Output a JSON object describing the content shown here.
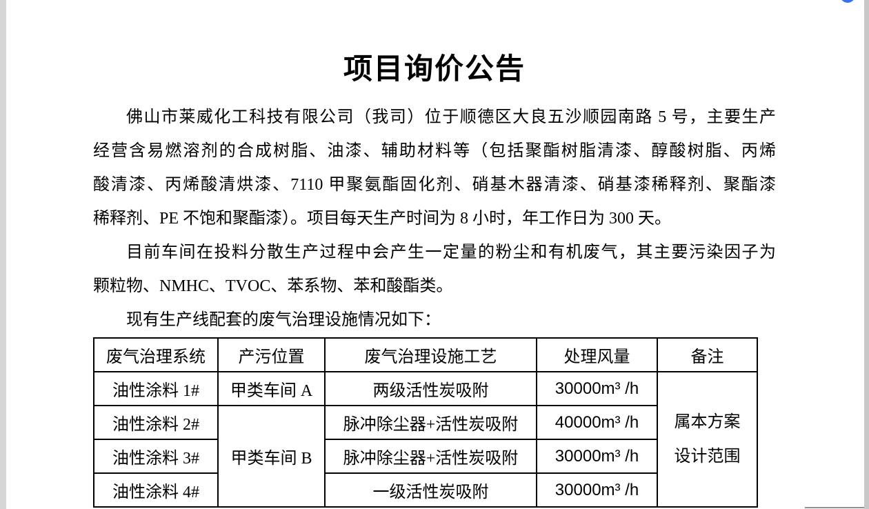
{
  "document": {
    "title": "项目询价公告",
    "paragraphs": [
      {
        "lines": [
          "佛山市莱威化工科技有限公司（我司）位于顺德区大良五沙顺园南路 5 号，主要生产",
          "经营含易燃溶剂的合成树脂、油漆、辅助材料等（包括聚酯树脂清漆、醇酸树脂、丙烯",
          "酸清漆、丙烯酸清烘漆、7110 甲聚氨酯固化剂、硝基木器清漆、硝基漆稀释剂、聚酯漆",
          "稀释剂、PE 不饱和聚酯漆）。项目每天生产时间为 8 小时，年工作日为 300 天。"
        ]
      },
      {
        "lines": [
          "目前车间在投料分散生产过程中会产生一定量的粉尘和有机废气，其主要污染因子为",
          "颗粒物、NMHC、TVOC、苯系物、苯和酸酯类。"
        ]
      },
      {
        "lines": [
          "现有生产线配套的废气治理设施情况如下："
        ]
      }
    ],
    "table": {
      "headers": [
        "废气治理系统",
        "产污位置",
        "废气治理设施工艺",
        "处理风量",
        "备注"
      ],
      "rows": [
        {
          "system": "油性涂料 1#",
          "location": "甲类车间 A",
          "process": "两级活性炭吸附",
          "airflow": "30000m³ /h"
        },
        {
          "system": "油性涂料 2#",
          "location": "甲类车间 B",
          "process": "脉冲除尘器+活性炭吸附",
          "airflow": "40000m³ /h"
        },
        {
          "system": "油性涂料 3#",
          "process": "脉冲除尘器+活性炭吸附",
          "airflow": "30000m³ /h"
        },
        {
          "system": "油性涂料 4#",
          "process": "一级活性炭吸附",
          "airflow": "30000m³ /h"
        }
      ],
      "remark_lines": [
        "属本方案",
        "设计范围"
      ]
    }
  },
  "chrome": {
    "accent_blue": "#3a6fe8",
    "left_edge_color": "#d6d6d6",
    "right_edge_color": "#c8c8c8"
  }
}
